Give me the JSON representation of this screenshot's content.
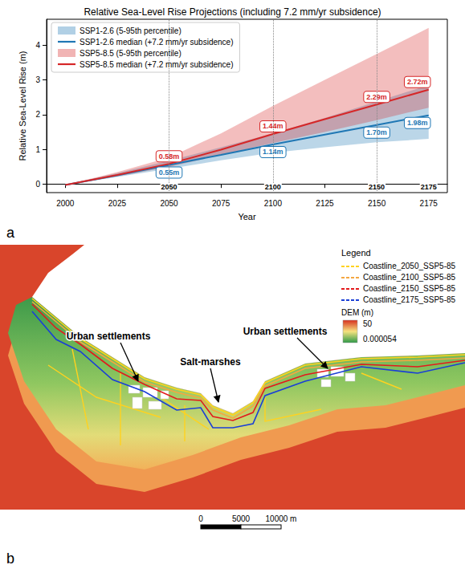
{
  "chart_data": {
    "type": "line",
    "panel": "a",
    "title": "Relative Sea-Level Rise Projections (including 7.2 mm/yr subsidence)",
    "x_label": "Year",
    "y_label": "Relative Sea-Level Rise (m)",
    "x": [
      2000,
      2025,
      2050,
      2075,
      2100,
      2125,
      2150,
      2175
    ],
    "xlim": [
      1991,
      2184
    ],
    "xticks": [
      2000,
      2025,
      2050,
      2075,
      2100,
      2125,
      2150,
      2175
    ],
    "ylim": [
      -0.25,
      4.75
    ],
    "yticks": [
      0,
      1,
      2,
      3,
      4
    ],
    "grid": false,
    "legend": "upper left",
    "data_labels": true,
    "vlines": [
      2050,
      2100,
      2150
    ],
    "year_labels": [
      2050,
      2100,
      2150,
      2175
    ],
    "series": [
      {
        "name": "SSP1-2.6 (5-95th percentile)",
        "type": "band",
        "color": "#1f77b4",
        "lower": [
          -0.03,
          0.2,
          0.44,
          0.68,
          0.9,
          1.06,
          1.2,
          1.3
        ],
        "upper": [
          -0.03,
          0.31,
          0.67,
          1.06,
          1.46,
          1.9,
          2.38,
          2.85
        ]
      },
      {
        "name": "SSP1-2.6 median (+7.2 mm/yr subsidence)",
        "type": "line",
        "color": "#1f77b4",
        "values": [
          -0.03,
          0.25,
          0.55,
          0.84,
          1.14,
          1.42,
          1.7,
          1.98
        ],
        "value_labels": [
          null,
          null,
          "0.55m",
          null,
          "1.14m",
          null,
          "1.70m",
          "1.98m"
        ]
      },
      {
        "name": "SSP5-8.5 (5-95th percentile)",
        "type": "band",
        "color": "#d62728",
        "lower": [
          -0.03,
          0.22,
          0.49,
          0.84,
          1.18,
          1.5,
          1.84,
          2.2
        ],
        "upper": [
          -0.03,
          0.34,
          0.76,
          1.46,
          2.25,
          3.0,
          3.75,
          4.5
        ]
      },
      {
        "name": "SSP5-8.5 median (+7.2 mm/yr subsidence)",
        "type": "line",
        "color": "#d62728",
        "values": [
          -0.03,
          0.26,
          0.58,
          0.99,
          1.44,
          1.87,
          2.29,
          2.72
        ],
        "value_labels": [
          null,
          null,
          "0.58m",
          null,
          "1.44m",
          null,
          "2.29m",
          "2.72m"
        ]
      }
    ]
  },
  "map": {
    "panel": "b",
    "labels": [
      {
        "text": "Urban settlements"
      },
      {
        "text": "Salt-marshes"
      },
      {
        "text": "Urban settlements"
      }
    ],
    "legend": {
      "title": "Legend",
      "entries": [
        {
          "name": "Coastline_2050_SSP5-85",
          "color": "#ffd21f"
        },
        {
          "name": "Coastline_2100_SSP5-85",
          "color": "#f4a742"
        },
        {
          "name": "Coastline_2150_SSP5-85",
          "color": "#e31a1c"
        },
        {
          "name": "Coastline_2175_SSP5-85",
          "color": "#1a3fd6"
        }
      ],
      "dem": {
        "title": "DEM (m)",
        "max": 50,
        "min": 5.4e-05
      }
    },
    "scale_bar": {
      "ticks": [
        0,
        5000,
        {
          "value": 10000,
          "label": "10000 m"
        }
      ]
    }
  }
}
